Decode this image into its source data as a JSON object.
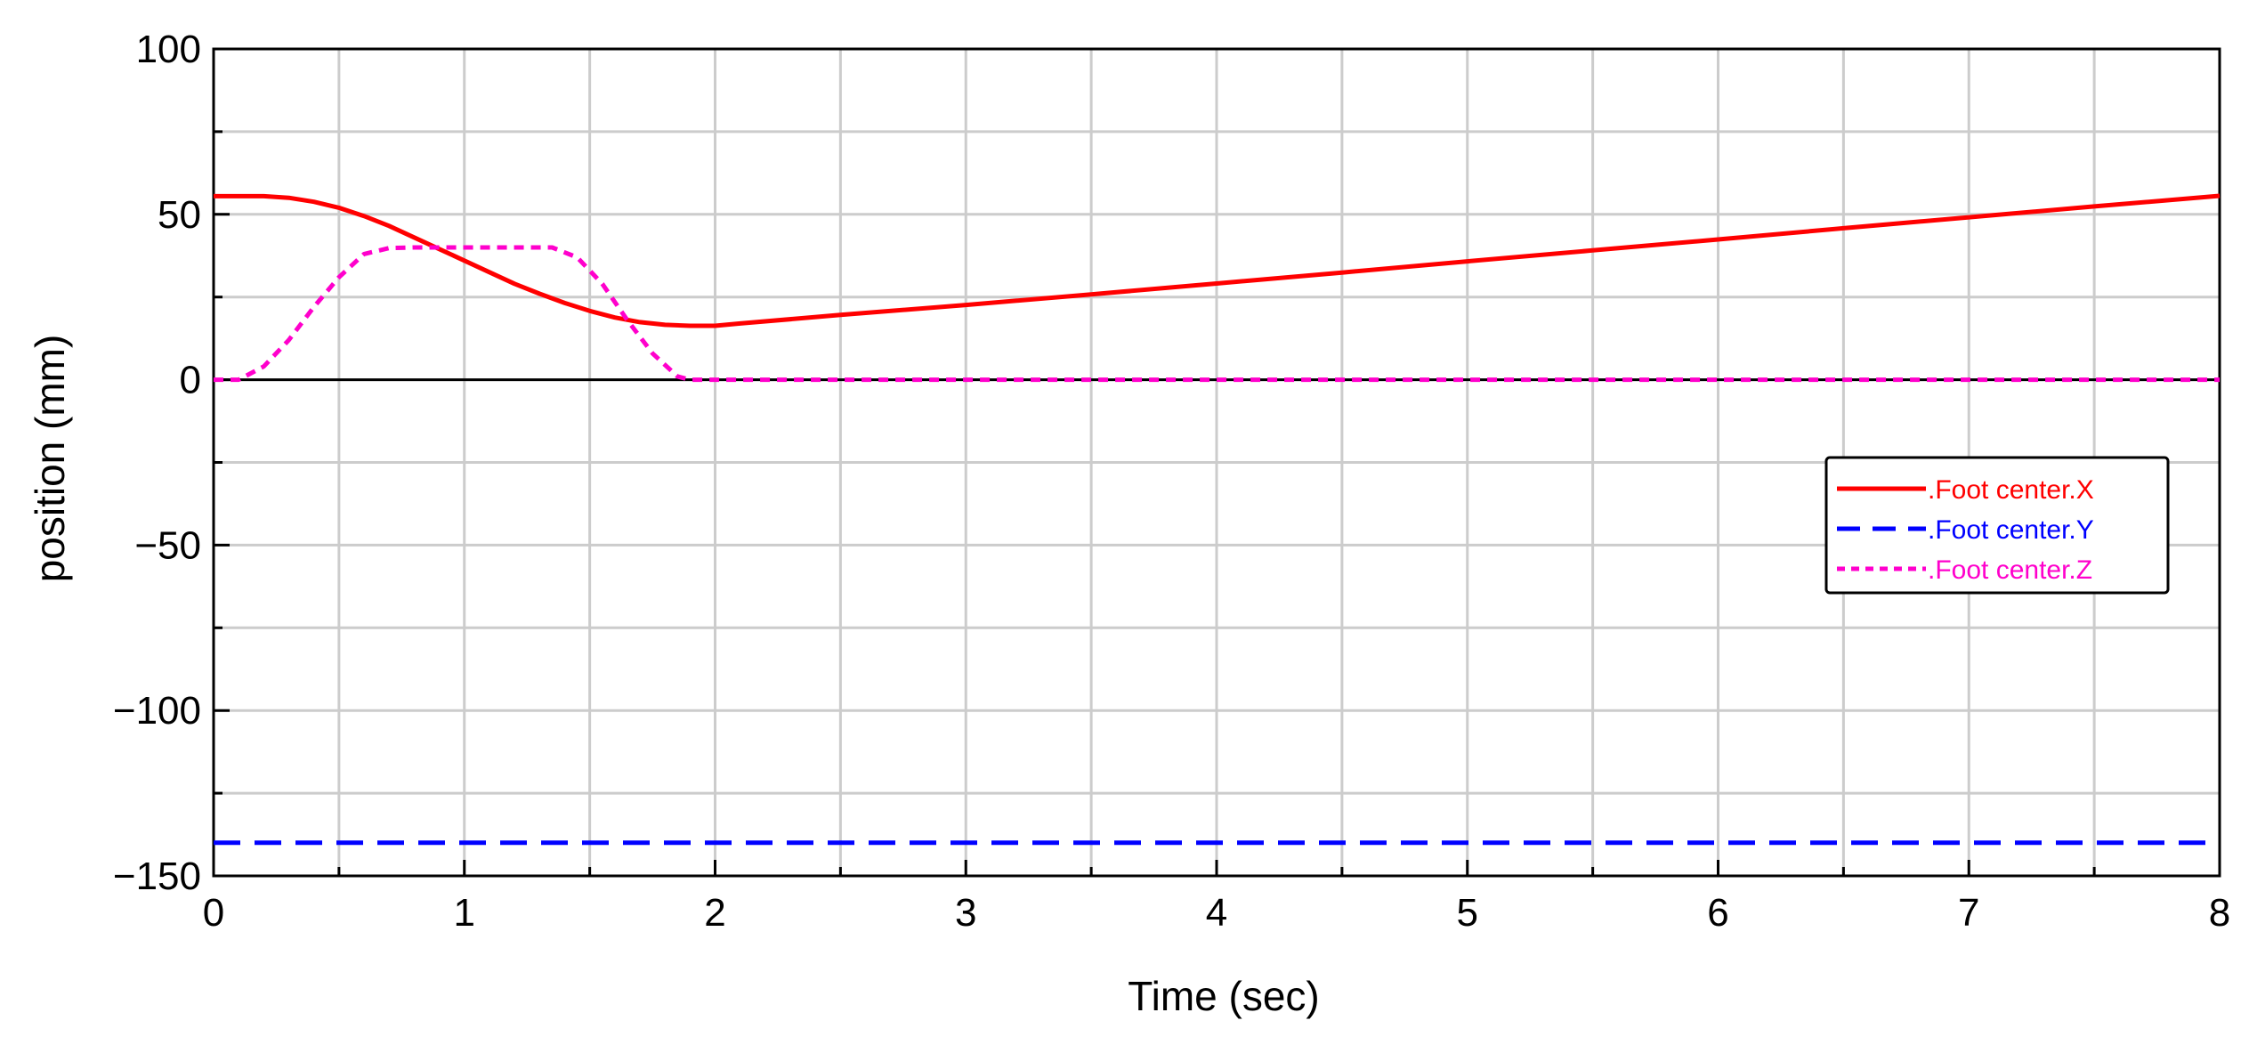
{
  "chart_data": {
    "type": "line",
    "title": "",
    "xlabel": "Time (sec)",
    "ylabel": "position (mm)",
    "xlim": [
      0,
      8
    ],
    "ylim": [
      -150,
      100
    ],
    "x_ticks": [
      "0",
      "1",
      "2",
      "3",
      "4",
      "5",
      "6",
      "7",
      "8"
    ],
    "y_ticks": [
      "100",
      "50",
      "0",
      "−50",
      "−100",
      "−150"
    ],
    "grid": true,
    "legend_position": "right",
    "series": [
      {
        "name": ".Foot center.X",
        "color": "#ff0000",
        "style": "solid",
        "x": [
          0,
          0.1,
          0.2,
          0.3,
          0.4,
          0.5,
          0.6,
          0.7,
          0.8,
          0.9,
          1.0,
          1.1,
          1.2,
          1.3,
          1.4,
          1.5,
          1.6,
          1.7,
          1.8,
          1.9,
          2.0,
          2.1,
          2.5,
          3,
          3.5,
          4,
          4.5,
          5,
          5.5,
          6,
          6.5,
          7,
          7.5,
          8
        ],
        "y": [
          55.5,
          55.5,
          55.5,
          55,
          53.8,
          52,
          49.5,
          46.5,
          43,
          39.5,
          36,
          32.5,
          29,
          26,
          23.2,
          20.8,
          18.8,
          17.4,
          16.6,
          16.3,
          16.3,
          17,
          19.6,
          22.6,
          25.8,
          29.1,
          32.4,
          35.8,
          39.1,
          42.4,
          45.8,
          49.1,
          52.4,
          55.6
        ]
      },
      {
        "name": ".Foot center.Y",
        "color": "#0000ff",
        "style": "dashed",
        "x": [
          0,
          8
        ],
        "y": [
          -140,
          -140
        ]
      },
      {
        "name": ".Foot center.Z",
        "color": "#ff00cc",
        "style": "dotted",
        "x": [
          0,
          0.1,
          0.2,
          0.3,
          0.4,
          0.5,
          0.6,
          0.7,
          0.8,
          1.0,
          1.2,
          1.35,
          1.45,
          1.55,
          1.65,
          1.75,
          1.85,
          1.9,
          2.0,
          8
        ],
        "y": [
          0,
          0,
          4,
          12,
          22,
          31,
          38,
          39.8,
          40,
          40,
          40,
          40,
          37,
          29,
          18,
          8,
          1,
          0,
          0,
          0
        ]
      }
    ]
  }
}
